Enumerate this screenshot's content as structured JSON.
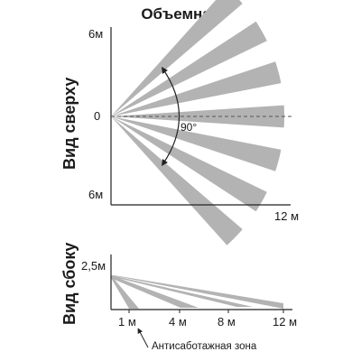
{
  "title": "Объемная",
  "top_view": {
    "label": "Вид сверху",
    "y_top": "6м",
    "y_zero": "0",
    "y_bottom": "6м",
    "x_max": "12 м",
    "angle": "90°",
    "beam_count": 7
  },
  "side_view": {
    "label": "Вид сбоку",
    "height": "2,5м",
    "x_ticks": [
      "1 м",
      "4 м",
      "8 м",
      "12 м"
    ],
    "note": "Антисаботажная зона"
  },
  "colors": {
    "beam": "#b3b3b3",
    "axis": "#222222",
    "dashed": "#555555"
  }
}
